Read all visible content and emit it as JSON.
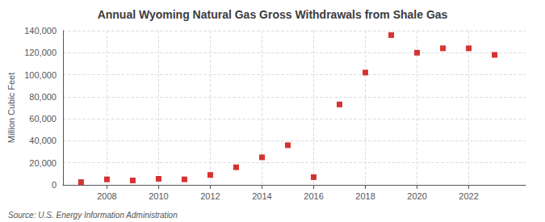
{
  "chart_data": {
    "type": "scatter",
    "title": "Annual Wyoming Natural Gas Gross Withdrawals from Shale Gas",
    "ylabel": "Million Cubic Feet",
    "source": "Source: U.S. Energy Information Administration",
    "x": [
      2007,
      2008,
      2009,
      2010,
      2011,
      2012,
      2013,
      2014,
      2015,
      2016,
      2017,
      2018,
      2019,
      2020,
      2021,
      2022,
      2023
    ],
    "values": [
      2500,
      5000,
      4000,
      5500,
      5000,
      9000,
      16000,
      25000,
      36000,
      7000,
      73000,
      102000,
      136000,
      120000,
      124000,
      124000,
      118000
    ],
    "color": "#cc0000",
    "marker": "square",
    "xlim": [
      2006.3,
      2024.2
    ],
    "xticks": [
      2008,
      2010,
      2012,
      2014,
      2016,
      2018,
      2020,
      2022
    ],
    "ylim": [
      0,
      140000
    ],
    "yticks": [
      0,
      {
        "value": 20000,
        "label": "20,000"
      },
      {
        "value": 40000,
        "label": "40,000"
      },
      {
        "value": 60000,
        "label": "60,000"
      },
      {
        "value": 80000,
        "label": "80,000"
      },
      {
        "value": 100000,
        "label": "100,000"
      },
      {
        "value": 120000,
        "label": "120,000"
      },
      {
        "value": 140000,
        "label": "140,000"
      }
    ],
    "grid": true
  }
}
